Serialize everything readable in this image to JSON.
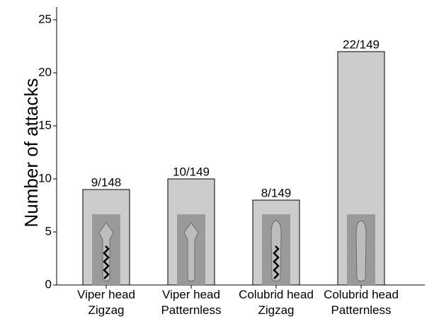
{
  "chart_data": {
    "type": "bar",
    "y_label": "Number of attacks",
    "categories": [
      [
        "Viper head",
        "Zigzag"
      ],
      [
        "Viper head",
        "Patternless"
      ],
      [
        "Colubrid head",
        "Zigzag"
      ],
      [
        "Colubrid head",
        "Patternless"
      ]
    ],
    "values": [
      9,
      10,
      8,
      22
    ],
    "value_labels": [
      "9/148",
      "10/149",
      "8/149",
      "22/149"
    ],
    "color": "#cccccc",
    "ylim": [
      0,
      26.2
    ],
    "yticks": [
      0,
      5,
      10,
      15,
      20,
      25
    ],
    "grid": false
  }
}
